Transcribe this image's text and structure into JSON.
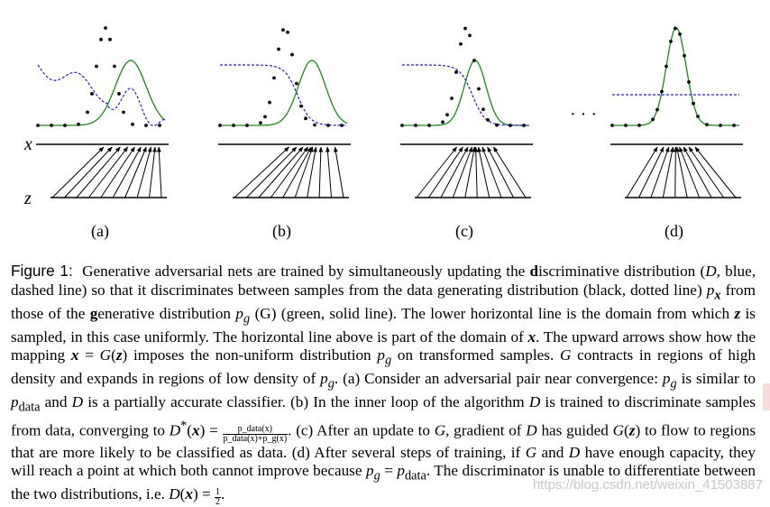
{
  "figure": {
    "axis_x_label": "x",
    "axis_z_label": "z",
    "ellipsis": "· · ·",
    "panels": [
      {
        "label": "(a)"
      },
      {
        "label": "(b)"
      },
      {
        "label": "(c)"
      },
      {
        "label": "(d)"
      }
    ],
    "colors": {
      "data_distribution": "#000000",
      "discriminator": "#1f1fd6",
      "generator": "#1a8a1a",
      "axis": "#000000"
    }
  },
  "caption": {
    "label": "Figure 1:",
    "t1": "Generative adversarial nets are trained by simultaneously updating the ",
    "d_bold": "d",
    "t2": "iscriminative distribution (",
    "t3": "D",
    "t4": ", blue, dashed line) so that it discriminates between samples from the data generating distribution (black, dotted line) ",
    "t5": "p",
    "t6": "x",
    "t7": " from those of the ",
    "g_bold": "g",
    "t8": "enerative distribution ",
    "t9": "p",
    "t10": "g",
    "t11": " (G) (green, solid line). The lower horizontal line is the domain from which ",
    "t12": "z",
    "t13": " is sampled, in this case uniformly. The horizontal line above is part of the domain of ",
    "t14": "x",
    "t15": ". The upward arrows show how the mapping ",
    "t16": "x",
    "t17": " = ",
    "t18": "G",
    "t19": "(",
    "t20": "z",
    "t21": ") imposes the non-uniform distribution ",
    "t22": "p",
    "t23": "g",
    "t24": " on transformed samples. ",
    "t25": "G",
    "t26": " contracts in regions of high density and expands in regions of low density of ",
    "t27": "p",
    "t28": "g",
    "t29": ". (a) Consider an adversarial pair near convergence: ",
    "t30": "p",
    "t31": "g",
    "t32": " is similar to ",
    "t33": "p",
    "t34": "data",
    "t35": " and ",
    "t36": "D",
    "t37": " is a partially accurate classifier. (b) In the inner loop of the algorithm ",
    "t38": "D",
    "t39": " is trained to discriminate samples from data, converging to ",
    "t40": "D",
    "t41": "*",
    "t42": "(",
    "t43": "x",
    "t44": ") =",
    "frac_num": "p_data(x)",
    "frac_den": "p_data(x)+p_g(x)",
    "t45": ". (c) After an update to ",
    "t46": "G",
    "t47": ", gradient of ",
    "t48": "D",
    "t49": " has guided ",
    "t50": "G",
    "t51": "(",
    "t52": "z",
    "t53": ") to flow to regions that are more likely to be classified as data. (d) After several steps of training, if ",
    "t54": "G",
    "t55": " and ",
    "t56": "D",
    "t57": " have enough capacity, they will reach a point at which both cannot improve because ",
    "t58": "p",
    "t59": "g",
    "t60": " = ",
    "t61": "p",
    "t62": "data",
    "t63": ". The discriminator is unable to differentiate between the two distributions, i.e. ",
    "t64": "D",
    "t65": "(",
    "t66": "x",
    "t67": ") = ",
    "half_num": "1",
    "half_den": "2",
    "t68": "."
  },
  "watermark": "https://blog.csdn.net/weixin_41503887"
}
